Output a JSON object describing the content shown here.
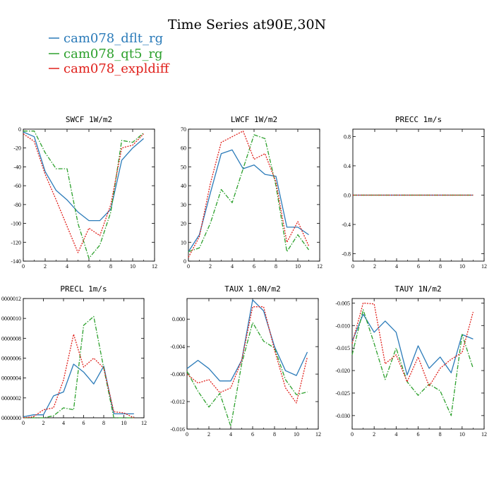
{
  "figure_title": "Time Series at90E,30N",
  "legend": [
    {
      "label": "cam078_dflt_rg",
      "color": "#2b7bb9"
    },
    {
      "label": "cam078_qt5_rg",
      "color": "#2ca02c"
    },
    {
      "label": "cam078_expldiff",
      "color": "#e0201b"
    }
  ],
  "chart_data": [
    {
      "type": "line",
      "title": "SWCF   1W/m2",
      "x": [
        0,
        1,
        2,
        3,
        4,
        5,
        6,
        7,
        8,
        9,
        10,
        11
      ],
      "xlim": [
        0,
        12
      ],
      "xticks": [
        0,
        2,
        4,
        6,
        8,
        10,
        12
      ],
      "ylim": [
        -140,
        0
      ],
      "yticks": [
        0,
        -20,
        -40,
        -60,
        -80,
        -100,
        -120,
        -140
      ],
      "ytick_labels": [
        "0",
        "-20",
        "-40",
        "-60",
        "-80",
        "-100",
        "-120",
        "-140"
      ],
      "series": [
        {
          "name": "cam078_dflt_rg",
          "color": "#2b7bb9",
          "style": "solid",
          "values": [
            -3,
            -8,
            -45,
            -65,
            -75,
            -88,
            -97,
            -97,
            -85,
            -33,
            -20,
            -10
          ]
        },
        {
          "name": "cam078_qt5_rg",
          "color": "#2ca02c",
          "style": "dashdot",
          "values": [
            -2,
            -2,
            -25,
            -42,
            -42,
            -100,
            -137,
            -123,
            -88,
            -12,
            -14,
            -4
          ]
        },
        {
          "name": "cam078_expldiff",
          "color": "#e0201b",
          "style": "dotted",
          "values": [
            -5,
            -13,
            -48,
            -75,
            -103,
            -131,
            -105,
            -113,
            -80,
            -20,
            -17,
            -5
          ]
        }
      ]
    },
    {
      "type": "line",
      "title": "LWCF   1W/m2",
      "x": [
        0,
        1,
        2,
        3,
        4,
        5,
        6,
        7,
        8,
        9,
        10,
        11
      ],
      "xlim": [
        0,
        12
      ],
      "xticks": [
        0,
        2,
        4,
        6,
        8,
        10,
        12
      ],
      "ylim": [
        0,
        70
      ],
      "yticks": [
        0,
        10,
        20,
        30,
        40,
        50,
        60,
        70
      ],
      "ytick_labels": [
        "0",
        "10",
        "20",
        "30",
        "40",
        "50",
        "60",
        "70"
      ],
      "series": [
        {
          "name": "cam078_dflt_rg",
          "color": "#2b7bb9",
          "style": "solid",
          "values": [
            5,
            14,
            36,
            57,
            59,
            49,
            51,
            46,
            45,
            18,
            18,
            14
          ]
        },
        {
          "name": "cam078_qt5_rg",
          "color": "#2ca02c",
          "style": "dashdot",
          "values": [
            5,
            7,
            20,
            38,
            31,
            49,
            67,
            65,
            40,
            5,
            14,
            6
          ]
        },
        {
          "name": "cam078_expldiff",
          "color": "#e0201b",
          "style": "dotted",
          "values": [
            2,
            13,
            41,
            63,
            66,
            69,
            54,
            57,
            42,
            10,
            21,
            8
          ]
        }
      ]
    },
    {
      "type": "line",
      "title": "PRECC   1m/s",
      "x": [
        0,
        1,
        2,
        3,
        4,
        5,
        6,
        7,
        8,
        9,
        10,
        11
      ],
      "xlim": [
        0,
        12
      ],
      "xticks": [
        0,
        2,
        4,
        6,
        8,
        10,
        12
      ],
      "ylim": [
        -0.9,
        0.9
      ],
      "yticks": [
        0.8,
        0.4,
        0.0,
        -0.4,
        -0.8
      ],
      "ytick_labels": [
        "0.8",
        "0.4",
        "0.0",
        "-0.4",
        "-0.8"
      ],
      "series": [
        {
          "name": "cam078_dflt_rg",
          "color": "#2b7bb9",
          "style": "solid",
          "values": [
            0,
            0,
            0,
            0,
            0,
            0,
            0,
            0,
            0,
            0,
            0,
            0
          ]
        },
        {
          "name": "cam078_qt5_rg",
          "color": "#2ca02c",
          "style": "dashdot",
          "values": [
            0,
            0,
            0,
            0,
            0,
            0,
            0,
            0,
            0,
            0,
            0,
            0
          ]
        },
        {
          "name": "cam078_expldiff",
          "color": "#e0201b",
          "style": "dotted",
          "values": [
            0,
            0,
            0,
            0,
            0,
            0,
            0,
            0,
            0,
            0,
            0,
            0
          ]
        }
      ]
    },
    {
      "type": "line",
      "title": "PRECL   1m/s",
      "x": [
        0,
        1,
        2,
        3,
        4,
        5,
        6,
        7,
        8,
        9,
        10,
        11
      ],
      "xlim": [
        0,
        12
      ],
      "xticks": [
        0,
        2,
        4,
        6,
        8,
        10,
        12
      ],
      "ylim": [
        0,
        1.2e-08
      ],
      "yticks": [
        1.2e-08,
        1e-08,
        8e-09,
        6e-09,
        4e-09,
        2e-09,
        0
      ],
      "ytick_labels": [
        "0000012",
        "0000010",
        "0000008",
        "0000006",
        "0000004",
        "0000002",
        "0000000"
      ],
      "series": [
        {
          "name": "cam078_dflt_rg",
          "color": "#2b7bb9",
          "style": "solid",
          "values": [
            1e-10,
            3e-10,
            3e-10,
            2.2e-09,
            2.6e-09,
            5.4e-09,
            4.6e-09,
            3.4e-09,
            5.2e-09,
            4e-10,
            4e-10,
            4e-10
          ]
        },
        {
          "name": "cam078_qt5_rg",
          "color": "#2ca02c",
          "style": "dashdot",
          "values": [
            0,
            0,
            0,
            2e-10,
            1e-09,
            8e-10,
            9.3e-09,
            1.02e-08,
            5e-09,
            0,
            0,
            0
          ]
        },
        {
          "name": "cam078_expldiff",
          "color": "#e0201b",
          "style": "dotted",
          "values": [
            0,
            1e-10,
            8e-10,
            1e-09,
            3.8e-09,
            8.4e-09,
            5.1e-09,
            6e-09,
            5e-09,
            6e-10,
            5e-10,
            0
          ]
        }
      ]
    },
    {
      "type": "line",
      "title": "TAUX   1.0N/m2",
      "x": [
        0,
        1,
        2,
        3,
        4,
        5,
        6,
        7,
        8,
        9,
        10,
        11
      ],
      "xlim": [
        0,
        12
      ],
      "xticks": [
        0,
        2,
        4,
        6,
        8,
        10,
        12
      ],
      "ylim": [
        -0.016,
        0.003
      ],
      "yticks": [
        0.0,
        -0.004,
        -0.008,
        -0.012,
        -0.016
      ],
      "ytick_labels": [
        "0.000",
        "-0.004",
        "-0.008",
        "-0.012",
        "-0.016"
      ],
      "series": [
        {
          "name": "cam078_dflt_rg",
          "color": "#2b7bb9",
          "style": "solid",
          "values": [
            -0.0072,
            -0.006,
            -0.0072,
            -0.009,
            -0.009,
            -0.006,
            0.0028,
            0.0012,
            -0.004,
            -0.0075,
            -0.0082,
            -0.0048
          ]
        },
        {
          "name": "cam078_qt5_rg",
          "color": "#2ca02c",
          "style": "dashdot",
          "values": [
            -0.0076,
            -0.0105,
            -0.0128,
            -0.0108,
            -0.0156,
            -0.0065,
            -0.0005,
            -0.0032,
            -0.0042,
            -0.0088,
            -0.011,
            -0.0106
          ]
        },
        {
          "name": "cam078_expldiff",
          "color": "#e0201b",
          "style": "dotted",
          "values": [
            -0.008,
            -0.0093,
            -0.0088,
            -0.0107,
            -0.01,
            -0.006,
            0.0018,
            0.0018,
            -0.0045,
            -0.01,
            -0.0122,
            -0.0055
          ]
        }
      ]
    },
    {
      "type": "line",
      "title": "TAUY   1N/m2",
      "x": [
        0,
        1,
        2,
        3,
        4,
        5,
        6,
        7,
        8,
        9,
        10,
        11
      ],
      "xlim": [
        0,
        12
      ],
      "xticks": [
        0,
        2,
        4,
        6,
        8,
        10,
        12
      ],
      "ylim": [
        -0.033,
        -0.004
      ],
      "yticks": [
        -0.005,
        -0.01,
        -0.015,
        -0.02,
        -0.025,
        -0.03
      ],
      "ytick_labels": [
        "-0.005",
        "-0.010",
        "-0.015",
        "-0.020",
        "-0.025",
        "-0.030"
      ],
      "series": [
        {
          "name": "cam078_dflt_rg",
          "color": "#2b7bb9",
          "style": "solid",
          "values": [
            -0.0135,
            -0.0075,
            -0.0115,
            -0.009,
            -0.0115,
            -0.021,
            -0.0145,
            -0.0195,
            -0.017,
            -0.0205,
            -0.012,
            -0.013
          ]
        },
        {
          "name": "cam078_qt5_rg",
          "color": "#2ca02c",
          "style": "dashdot",
          "values": [
            -0.0165,
            -0.0065,
            -0.014,
            -0.022,
            -0.015,
            -0.0225,
            -0.0255,
            -0.023,
            -0.0245,
            -0.03,
            -0.012,
            -0.0195
          ]
        },
        {
          "name": "cam078_expldiff",
          "color": "#e0201b",
          "style": "dotted",
          "values": [
            -0.014,
            -0.005,
            -0.0052,
            -0.0185,
            -0.0165,
            -0.0225,
            -0.017,
            -0.0235,
            -0.0195,
            -0.0175,
            -0.016,
            -0.007
          ]
        }
      ]
    }
  ]
}
